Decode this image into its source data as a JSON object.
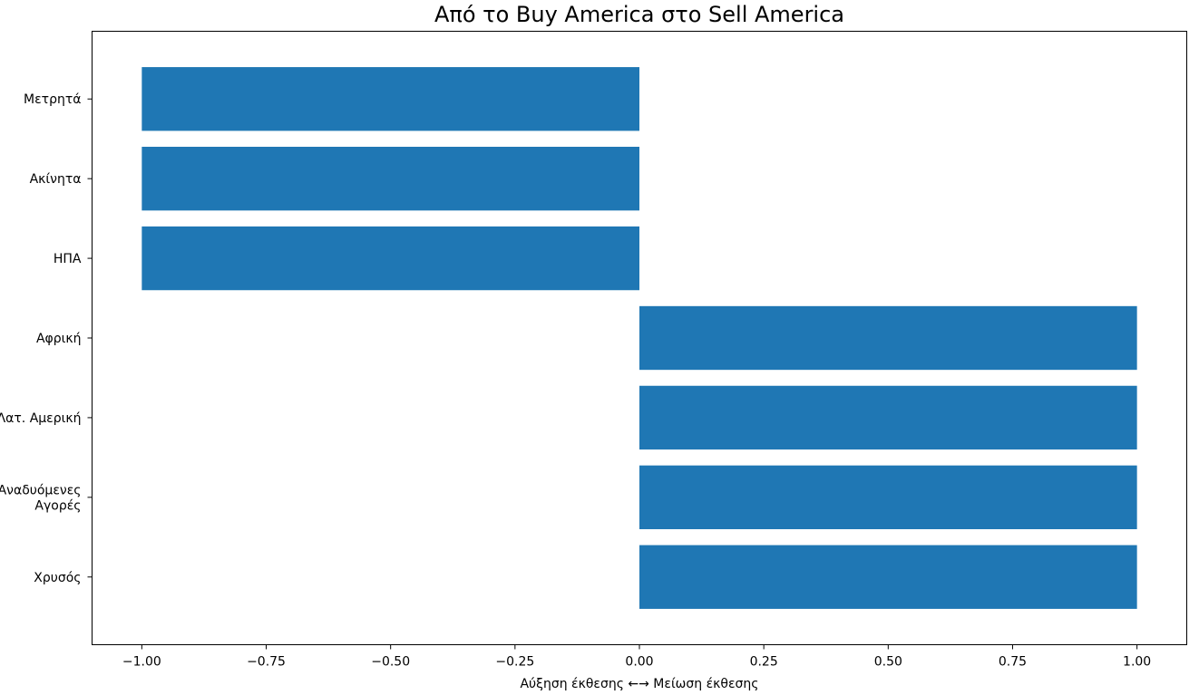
{
  "chart_data": {
    "type": "bar",
    "orientation": "horizontal",
    "title": "Από το Buy America στο Sell America",
    "xlabel": "Αύξηση έκθεσης  ←→  Μείωση έκθεσης",
    "ylabel": "",
    "categories": [
      "Μετρητά",
      "Ακίνητα",
      "ΗΠΑ",
      "Αφρική",
      "Λατ. Αμερική",
      "Αναδυόμενες\nΑγορές",
      "Χρυσός"
    ],
    "values": [
      -1,
      -1,
      -1,
      1,
      1,
      1,
      1
    ],
    "xlim": [
      -1.1,
      1.1
    ],
    "xticks": [
      -1.0,
      -0.75,
      -0.5,
      -0.25,
      0.0,
      0.25,
      0.5,
      0.75,
      1.0
    ],
    "xtick_labels": [
      "−1.00",
      "−0.75",
      "−0.50",
      "−0.25",
      "0.00",
      "0.25",
      "0.50",
      "0.75",
      "1.00"
    ],
    "bar_color": "#1f77b4",
    "grid": false,
    "legend": "none"
  }
}
